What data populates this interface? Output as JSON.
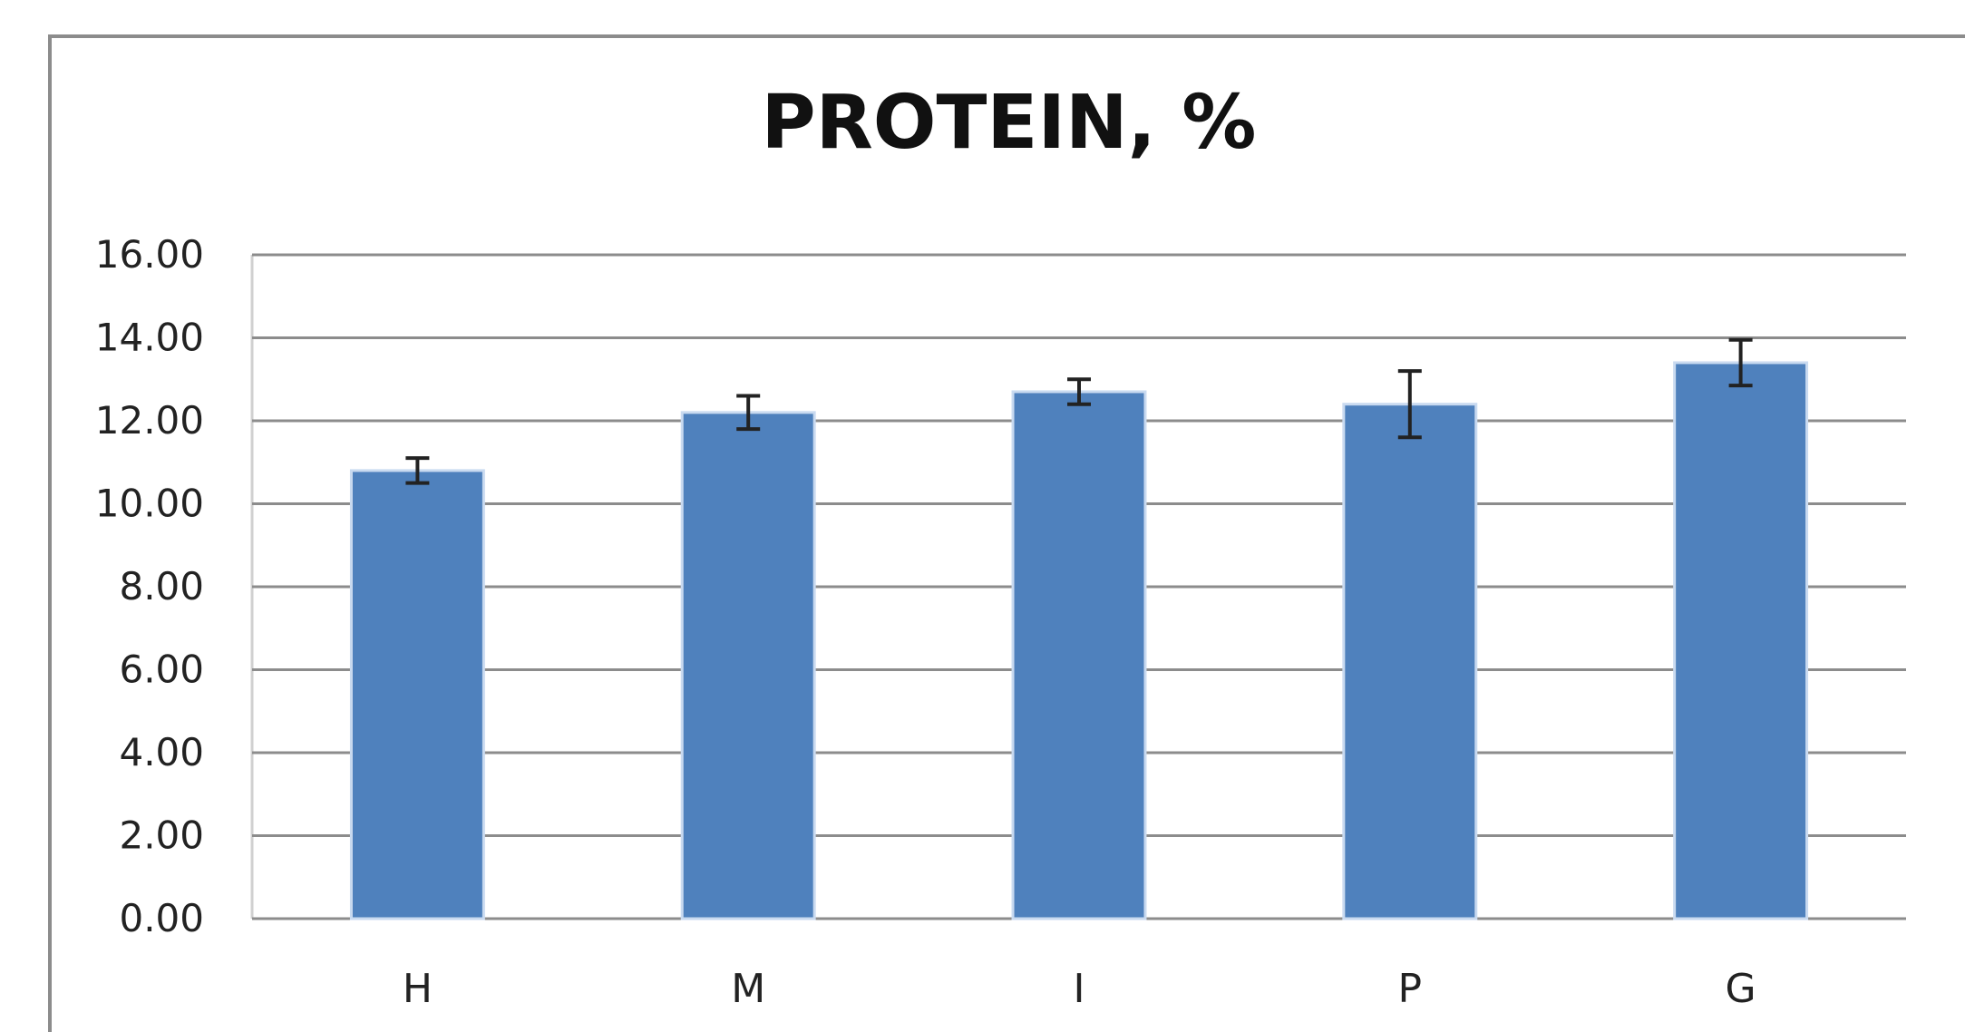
{
  "chart_data": {
    "type": "bar",
    "title": "PROTEIN, %",
    "xlabel": "",
    "ylabel": "",
    "categories": [
      "H",
      "M",
      "I",
      "P",
      "G"
    ],
    "values": [
      10.8,
      12.2,
      12.7,
      12.4,
      13.4
    ],
    "error": [
      0.3,
      0.4,
      0.3,
      0.8,
      0.55
    ],
    "ylim": [
      0,
      16
    ],
    "yticks": [
      "0.00",
      "2.00",
      "4.00",
      "6.00",
      "8.00",
      "10.00",
      "12.00",
      "14.00",
      "16.00"
    ],
    "grid": true,
    "legend": "none",
    "colors": {
      "bar": "#4f81bd",
      "bar_edge": "#c9daf0",
      "grid": "#8c8c8c",
      "error_bar": "#222222"
    }
  }
}
